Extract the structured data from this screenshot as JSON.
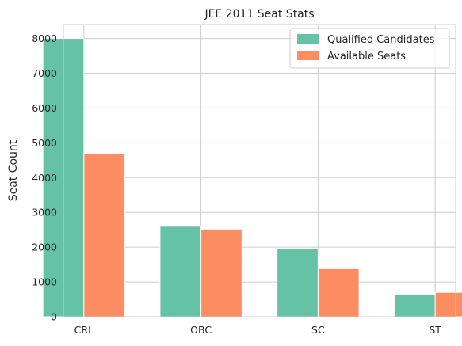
{
  "chart_data": {
    "type": "bar",
    "title": "JEE 2011 Seat Stats",
    "xlabel": "",
    "ylabel": "Seat Count",
    "categories": [
      "CRL",
      "OBC",
      "SC",
      "ST"
    ],
    "series": [
      {
        "name": "Qualified Candidates",
        "values": [
          8000,
          2600,
          1950,
          650
        ],
        "color": "#66c2a5"
      },
      {
        "name": "Available Seats",
        "values": [
          4700,
          2520,
          1380,
          700
        ],
        "color": "#fc8d62"
      }
    ],
    "yticks": [
      0,
      1000,
      2000,
      3000,
      4000,
      5000,
      6000,
      7000,
      8000
    ],
    "ylim": [
      0,
      8400
    ],
    "grid": true,
    "legend_position": "top-right"
  }
}
